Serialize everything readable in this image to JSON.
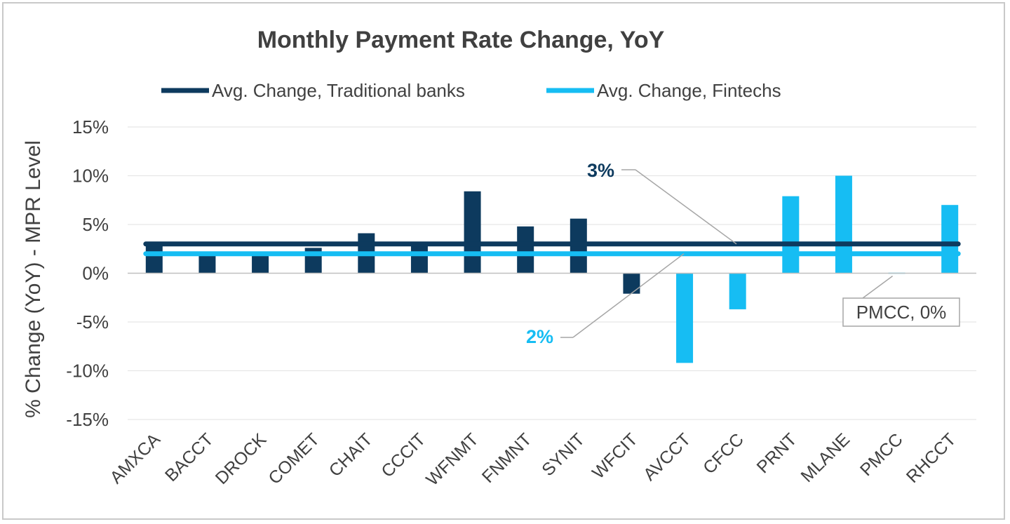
{
  "chart_data": {
    "type": "bar",
    "title": "Monthly Payment Rate Change, YoY",
    "ylabel": "% Change (YoY) - MPR Level",
    "xlabel": "",
    "ylim": [
      -15,
      15
    ],
    "yticks": [
      15,
      10,
      5,
      0,
      -5,
      -10,
      -15
    ],
    "ytick_labels": [
      "15%",
      "10%",
      "5%",
      "0%",
      "-5%",
      "-10%",
      "-15%"
    ],
    "grid": true,
    "legend_position": "top",
    "categories": [
      "AMXCA",
      "BACCT",
      "DROCK",
      "COMET",
      "CHAIT",
      "CCCIT",
      "WFNMT",
      "FNMNT",
      "SYNIT",
      "WFCIT",
      "AVCCT",
      "CFCC",
      "PRNT",
      "MLANE",
      "PMCC",
      "RHCCT"
    ],
    "values": [
      3.1,
      1.9,
      2.2,
      2.6,
      4.1,
      2.9,
      8.4,
      4.8,
      5.6,
      -2.1,
      -9.2,
      -3.7,
      7.9,
      10.0,
      -0.1,
      7.0
    ],
    "groups": [
      "traditional",
      "traditional",
      "traditional",
      "traditional",
      "traditional",
      "traditional",
      "traditional",
      "traditional",
      "traditional",
      "traditional",
      "fintech",
      "fintech",
      "fintech",
      "fintech",
      "fintech",
      "fintech"
    ],
    "series": [
      {
        "name": "Avg. Change, Traditional banks",
        "value": 3,
        "color": "#0d3a5e"
      },
      {
        "name": "Avg. Change, Fintechs",
        "value": 2,
        "color": "#16bdf3"
      }
    ],
    "colors": {
      "traditional": "#0d3a5e",
      "fintech": "#16bdf3"
    },
    "annotations": [
      {
        "text": "3%",
        "target": "traditional_avg",
        "color": "#0d3a5e"
      },
      {
        "text": "2%",
        "target": "fintech_avg",
        "color": "#16bdf3"
      },
      {
        "text": "PMCC, 0%",
        "target": "PMCC",
        "boxed": true
      }
    ]
  }
}
